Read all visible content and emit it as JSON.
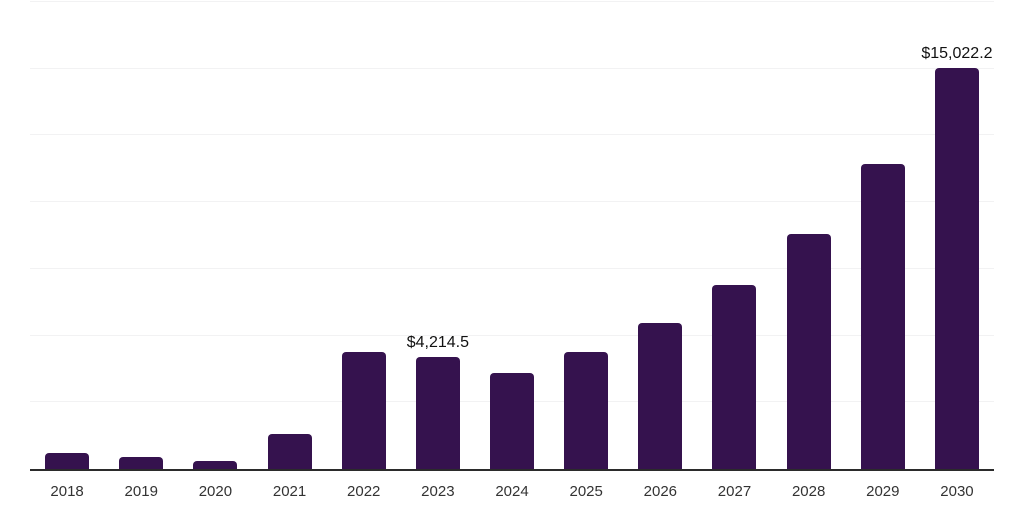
{
  "chart_data": {
    "type": "bar",
    "title": "",
    "xlabel": "",
    "ylabel": "",
    "categories": [
      "2018",
      "2019",
      "2020",
      "2021",
      "2022",
      "2023",
      "2024",
      "2025",
      "2026",
      "2027",
      "2028",
      "2029",
      "2030"
    ],
    "values": [
      600,
      450,
      300,
      1330,
      4380,
      4214.5,
      3600,
      4400,
      5470,
      6900,
      8800,
      11430,
      15022.2
    ],
    "data_labels": [
      {
        "index": 5,
        "category": "2023",
        "text": "$4,214.5"
      },
      {
        "index": 12,
        "category": "2030",
        "text": "$15,022.2"
      }
    ],
    "value_prefix": "$",
    "ylim": [
      0,
      17500
    ],
    "gridline_step": 2500,
    "grid": true,
    "legend": false,
    "y_tick_labels_visible": false
  },
  "colors": {
    "background": "#FFFFFF",
    "bar": "#35124E",
    "grid": "#F2F2F3",
    "axis": "#2B2B2B",
    "tick_label": "#333333",
    "data_label": "#111111"
  }
}
